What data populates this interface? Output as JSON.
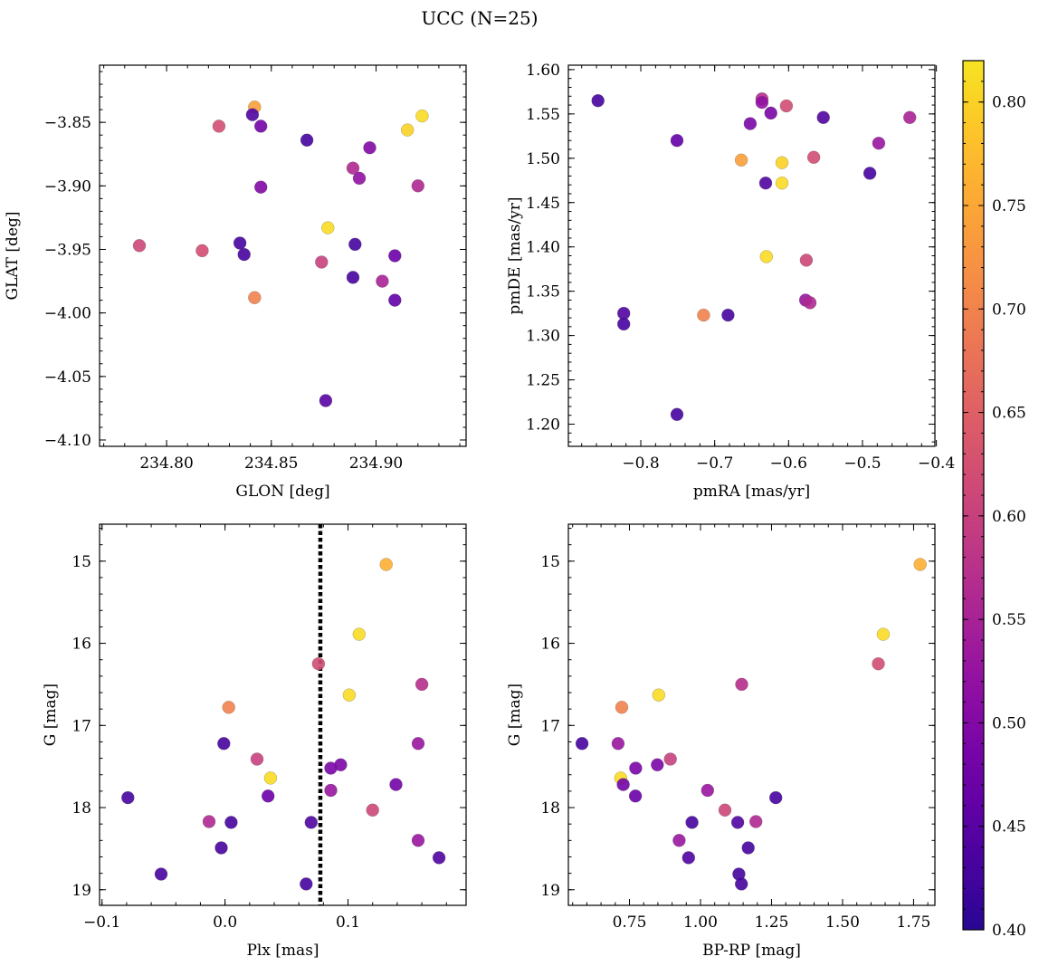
{
  "figure": {
    "title": "UCC (N=25)"
  },
  "colorbar": {
    "min": 0.4,
    "max": 0.82,
    "ticks": [
      0.4,
      0.45,
      0.5,
      0.55,
      0.6,
      0.65,
      0.7,
      0.75,
      0.8
    ],
    "tick_labels": [
      "0.40",
      "0.45",
      "0.50",
      "0.55",
      "0.60",
      "0.65",
      "0.70",
      "0.75",
      "0.80"
    ],
    "colormap": "plasma",
    "colors": {
      "low": "#2c2795",
      "high": "#f3f645"
    }
  },
  "chart_data": [
    {
      "type": "scatter",
      "xlabel": "GLON [deg]",
      "ylabel": "GLAT [deg]",
      "xlim": [
        234.768,
        234.943
      ],
      "ylim": [
        -4.105,
        -3.805
      ],
      "xticks": [
        234.8,
        234.85,
        234.9
      ],
      "xtick_labels": [
        "234.80",
        "234.85",
        "234.90"
      ],
      "yticks": [
        -4.1,
        -4.05,
        -4.0,
        -3.95,
        -3.9,
        -3.85
      ],
      "ytick_labels": [
        "−4.10",
        "−4.05",
        "−4.00",
        "−3.95",
        "−3.90",
        "−3.85"
      ],
      "inverted_y": false,
      "x": [
        234.842,
        234.841,
        234.825,
        234.845,
        234.867,
        234.922,
        234.915,
        234.897,
        234.889,
        234.892,
        234.845,
        234.92,
        234.787,
        234.817,
        234.835,
        234.837,
        234.877,
        234.89,
        234.874,
        234.909,
        234.889,
        234.903,
        234.842,
        234.909,
        234.876
      ],
      "y": [
        -3.838,
        -3.844,
        -3.853,
        -3.853,
        -3.864,
        -3.845,
        -3.856,
        -3.87,
        -3.886,
        -3.894,
        -3.901,
        -3.9,
        -3.947,
        -3.951,
        -3.945,
        -3.954,
        -3.933,
        -3.946,
        -3.96,
        -3.955,
        -3.972,
        -3.975,
        -3.988,
        -3.99,
        -4.069
      ],
      "c": [
        0.74,
        0.44,
        0.62,
        0.48,
        0.43,
        0.81,
        0.8,
        0.5,
        0.56,
        0.52,
        0.5,
        0.56,
        0.61,
        0.62,
        0.43,
        0.43,
        0.81,
        0.43,
        0.6,
        0.47,
        0.43,
        0.55,
        0.7,
        0.46,
        0.45
      ]
    },
    {
      "type": "scatter",
      "xlabel": "pmRA [mas/yr]",
      "ylabel": "pmDE [mas/yr]",
      "xlim": [
        -0.898,
        -0.402
      ],
      "ylim": [
        1.175,
        1.605
      ],
      "xticks": [
        -0.8,
        -0.7,
        -0.6,
        -0.5,
        -0.4
      ],
      "xtick_labels": [
        "−0.8",
        "−0.7",
        "−0.6",
        "−0.5",
        "−0.4"
      ],
      "yticks": [
        1.2,
        1.25,
        1.3,
        1.35,
        1.4,
        1.45,
        1.5,
        1.55,
        1.6
      ],
      "ytick_labels": [
        "1.20",
        "1.25",
        "1.30",
        "1.35",
        "1.40",
        "1.45",
        "1.50",
        "1.55",
        "1.60"
      ],
      "inverted_y": false,
      "x": [
        -0.858,
        -0.636,
        -0.636,
        -0.603,
        -0.624,
        -0.652,
        -0.553,
        -0.436,
        -0.751,
        -0.478,
        -0.49,
        -0.664,
        -0.609,
        -0.566,
        -0.631,
        -0.609,
        -0.63,
        -0.576,
        -0.577,
        -0.571,
        -0.715,
        -0.823,
        -0.823,
        -0.682,
        -0.751
      ],
      "y": [
        1.565,
        1.567,
        1.563,
        1.559,
        1.551,
        1.539,
        1.546,
        1.546,
        1.52,
        1.517,
        1.483,
        1.498,
        1.495,
        1.501,
        1.472,
        1.472,
        1.389,
        1.385,
        1.34,
        1.337,
        1.323,
        1.325,
        1.313,
        1.323,
        1.211
      ],
      "c": [
        0.43,
        0.57,
        0.52,
        0.62,
        0.49,
        0.49,
        0.44,
        0.55,
        0.46,
        0.53,
        0.43,
        0.74,
        0.8,
        0.62,
        0.44,
        0.81,
        0.81,
        0.61,
        0.53,
        0.56,
        0.7,
        0.44,
        0.43,
        0.43,
        0.43
      ]
    },
    {
      "type": "scatter",
      "xlabel": "Plx [mas]",
      "ylabel": "G [mag]",
      "xlim": [
        -0.102,
        0.196
      ],
      "ylim": [
        19.19,
        14.55
      ],
      "xticks": [
        -0.1,
        0.0,
        0.1
      ],
      "xtick_labels": [
        "−0.1",
        "0.0",
        "0.1"
      ],
      "yticks": [
        15,
        16,
        17,
        18,
        19
      ],
      "ytick_labels": [
        "15",
        "16",
        "17",
        "18",
        "19"
      ],
      "inverted_y": true,
      "vline": {
        "x": 0.0775,
        "style": "dotted",
        "color": "#000000"
      },
      "x": [
        0.131,
        0.109,
        0.076,
        0.16,
        0.101,
        0.003,
        -0.001,
        0.157,
        0.026,
        0.094,
        0.086,
        0.037,
        0.139,
        0.086,
        0.035,
        -0.079,
        0.12,
        -0.013,
        0.005,
        0.07,
        0.157,
        -0.003,
        0.174,
        -0.052,
        0.066
      ],
      "y": [
        15.04,
        15.89,
        16.25,
        16.5,
        16.63,
        16.78,
        17.22,
        17.22,
        17.41,
        17.48,
        17.52,
        17.64,
        17.72,
        17.79,
        17.86,
        17.88,
        18.03,
        18.17,
        18.18,
        18.18,
        18.4,
        18.49,
        18.61,
        18.81,
        18.93
      ],
      "c": [
        0.76,
        0.81,
        0.62,
        0.57,
        0.81,
        0.7,
        0.43,
        0.53,
        0.6,
        0.49,
        0.49,
        0.81,
        0.48,
        0.53,
        0.47,
        0.43,
        0.61,
        0.56,
        0.43,
        0.44,
        0.53,
        0.43,
        0.44,
        0.43,
        0.43
      ]
    },
    {
      "type": "scatter",
      "xlabel": "BP-RP [mag]",
      "ylabel": "G [mag]",
      "xlim": [
        0.535,
        1.825
      ],
      "ylim": [
        19.19,
        14.55
      ],
      "xticks": [
        0.75,
        1.0,
        1.25,
        1.5,
        1.75
      ],
      "xtick_labels": [
        "0.75",
        "1.00",
        "1.25",
        "1.50",
        "1.75"
      ],
      "yticks": [
        15,
        16,
        17,
        18,
        19
      ],
      "ytick_labels": [
        "15",
        "16",
        "17",
        "18",
        "19"
      ],
      "inverted_y": true,
      "x": [
        1.773,
        1.643,
        1.626,
        1.145,
        0.853,
        0.723,
        0.583,
        0.71,
        0.894,
        0.848,
        0.772,
        0.719,
        0.728,
        1.025,
        0.771,
        1.265,
        1.086,
        1.195,
        0.97,
        1.131,
        0.925,
        1.168,
        0.958,
        1.135,
        1.144
      ],
      "y": [
        15.04,
        15.89,
        16.25,
        16.5,
        16.63,
        16.78,
        17.22,
        17.22,
        17.41,
        17.48,
        17.52,
        17.64,
        17.72,
        17.79,
        17.86,
        17.88,
        18.03,
        18.17,
        18.18,
        18.18,
        18.4,
        18.49,
        18.61,
        18.81,
        18.93
      ],
      "c": [
        0.76,
        0.81,
        0.62,
        0.57,
        0.81,
        0.7,
        0.43,
        0.53,
        0.6,
        0.49,
        0.49,
        0.81,
        0.48,
        0.53,
        0.47,
        0.43,
        0.61,
        0.56,
        0.43,
        0.44,
        0.53,
        0.43,
        0.44,
        0.43,
        0.43
      ]
    }
  ]
}
